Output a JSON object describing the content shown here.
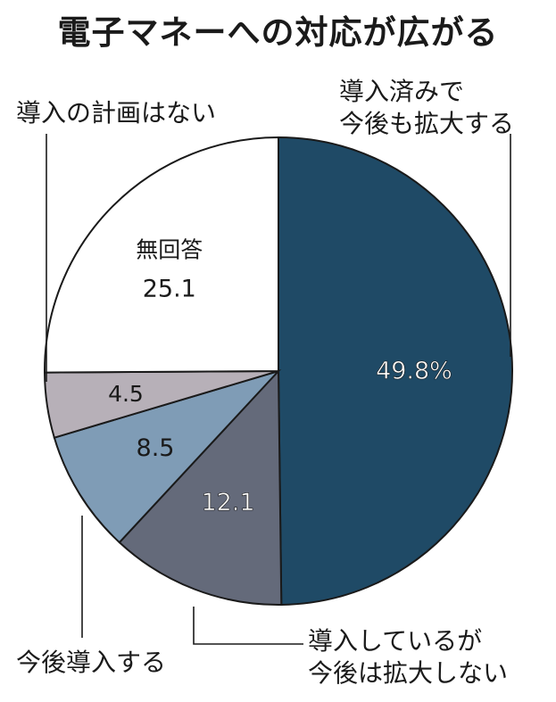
{
  "chart_data": {
    "type": "pie",
    "title": "電子マネーへの対応が広がる",
    "unit": "%",
    "slices": [
      {
        "label_lines": [
          "導入済みで",
          "今後も拡大する"
        ],
        "value": 49.8,
        "value_text": "49.8%",
        "color": "#1f4a66"
      },
      {
        "label_lines": [
          "導入しているが",
          "今後は拡大しない"
        ],
        "value": 12.1,
        "value_text": "12.1",
        "color": "#646a7a"
      },
      {
        "label_lines": [
          "今後導入する"
        ],
        "value": 8.5,
        "value_text": "8.5",
        "color": "#7f9cb6"
      },
      {
        "label_lines": [
          "導入の計画はない"
        ],
        "value": 4.5,
        "value_text": "4.5",
        "color": "#b7b0b8"
      },
      {
        "label_lines": [
          "無回答"
        ],
        "value": 25.1,
        "value_text": "25.1",
        "color": "#ffffff"
      }
    ]
  }
}
